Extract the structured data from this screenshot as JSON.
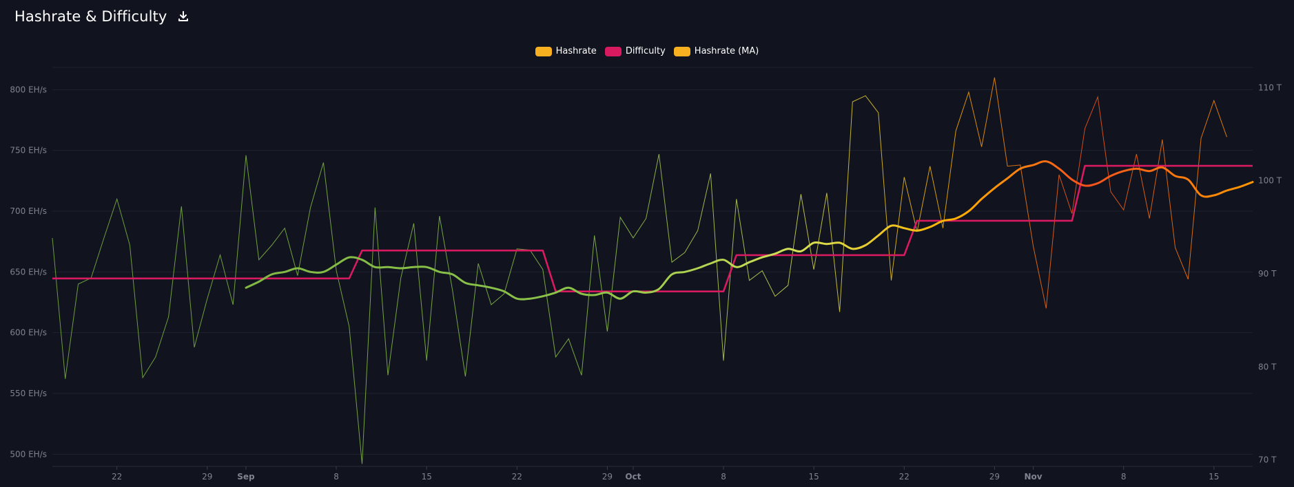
{
  "header": {
    "title": "Hashrate & Difficulty"
  },
  "icons": {
    "download": "download-icon"
  },
  "legend": [
    {
      "label": "Hashrate",
      "color": "#f7b120"
    },
    {
      "label": "Difficulty",
      "color": "#d81b60"
    },
    {
      "label": "Hashrate (MA)",
      "color": "#f7b120"
    }
  ],
  "chart_data": {
    "type": "line",
    "left_axis": {
      "unit": "EH/s",
      "range": [
        490,
        820
      ],
      "ticks": [
        {
          "value": 500,
          "label": "500 EH/s"
        },
        {
          "value": 550,
          "label": "550 EH/s"
        },
        {
          "value": 600,
          "label": "600 EH/s"
        },
        {
          "value": 650,
          "label": "650 EH/s"
        },
        {
          "value": 700,
          "label": "700 EH/s"
        },
        {
          "value": 750,
          "label": "750 EH/s"
        },
        {
          "value": 800,
          "label": "800 EH/s"
        }
      ]
    },
    "right_axis": {
      "unit": "T",
      "range": [
        69.3,
        112.4
      ],
      "ticks": [
        {
          "value": 70,
          "label": "70 T"
        },
        {
          "value": 80,
          "label": "80 T"
        },
        {
          "value": 90,
          "label": "90 T"
        },
        {
          "value": 100,
          "label": "100 T"
        },
        {
          "value": 110,
          "label": "110 T"
        }
      ]
    },
    "x_axis": {
      "start": "2024-08-17",
      "end": "2024-11-18",
      "ticks": [
        {
          "date": "2024-08-22",
          "label": "22",
          "bold": false
        },
        {
          "date": "2024-08-29",
          "label": "29",
          "bold": false
        },
        {
          "date": "2024-09-01",
          "label": "Sep",
          "bold": true
        },
        {
          "date": "2024-09-08",
          "label": "8",
          "bold": false
        },
        {
          "date": "2024-09-15",
          "label": "15",
          "bold": false
        },
        {
          "date": "2024-09-22",
          "label": "22",
          "bold": false
        },
        {
          "date": "2024-09-29",
          "label": "29",
          "bold": false
        },
        {
          "date": "2024-10-01",
          "label": "Oct",
          "bold": true
        },
        {
          "date": "2024-10-08",
          "label": "8",
          "bold": false
        },
        {
          "date": "2024-10-15",
          "label": "15",
          "bold": false
        },
        {
          "date": "2024-10-22",
          "label": "22",
          "bold": false
        },
        {
          "date": "2024-10-29",
          "label": "29",
          "bold": false
        },
        {
          "date": "2024-11-01",
          "label": "Nov",
          "bold": true
        },
        {
          "date": "2024-11-08",
          "label": "8",
          "bold": false
        },
        {
          "date": "2024-11-15",
          "label": "15",
          "bold": false
        }
      ]
    },
    "gradient_stops": [
      {
        "offset": 0,
        "color": "#7cb342"
      },
      {
        "offset": 0.45,
        "color": "#8bc34a"
      },
      {
        "offset": 0.62,
        "color": "#d4e157"
      },
      {
        "offset": 0.75,
        "color": "#ffb300"
      },
      {
        "offset": 0.86,
        "color": "#f4511e"
      },
      {
        "offset": 1.0,
        "color": "#ff9800"
      }
    ],
    "series": [
      {
        "name": "Hashrate",
        "axis": "left",
        "values": [
          [
            "2024-08-17",
            678
          ],
          [
            "2024-08-18",
            562
          ],
          [
            "2024-08-19",
            640
          ],
          [
            "2024-08-20",
            645
          ],
          [
            "2024-08-21",
            678
          ],
          [
            "2024-08-22",
            710
          ],
          [
            "2024-08-23",
            672
          ],
          [
            "2024-08-24",
            563
          ],
          [
            "2024-08-25",
            580
          ],
          [
            "2024-08-26",
            613
          ],
          [
            "2024-08-27",
            704
          ],
          [
            "2024-08-28",
            588
          ],
          [
            "2024-08-29",
            628
          ],
          [
            "2024-08-30",
            664
          ],
          [
            "2024-08-31",
            623
          ],
          [
            "2024-09-01",
            746
          ],
          [
            "2024-09-02",
            660
          ],
          [
            "2024-09-03",
            672
          ],
          [
            "2024-09-04",
            686
          ],
          [
            "2024-09-05",
            647
          ],
          [
            "2024-09-06",
            703
          ],
          [
            "2024-09-07",
            740
          ],
          [
            "2024-09-08",
            651
          ],
          [
            "2024-09-09",
            605
          ],
          [
            "2024-09-10",
            492
          ],
          [
            "2024-09-11",
            703
          ],
          [
            "2024-09-12",
            565
          ],
          [
            "2024-09-13",
            645
          ],
          [
            "2024-09-14",
            690
          ],
          [
            "2024-09-15",
            577
          ],
          [
            "2024-09-16",
            696
          ],
          [
            "2024-09-17",
            635
          ],
          [
            "2024-09-18",
            564
          ],
          [
            "2024-09-19",
            657
          ],
          [
            "2024-09-20",
            623
          ],
          [
            "2024-09-21",
            632
          ],
          [
            "2024-09-22",
            669
          ],
          [
            "2024-09-23",
            668
          ],
          [
            "2024-09-24",
            652
          ],
          [
            "2024-09-25",
            580
          ],
          [
            "2024-09-26",
            595
          ],
          [
            "2024-09-27",
            565
          ],
          [
            "2024-09-28",
            680
          ],
          [
            "2024-09-29",
            601
          ],
          [
            "2024-09-30",
            695
          ],
          [
            "2024-10-01",
            678
          ],
          [
            "2024-10-02",
            694
          ],
          [
            "2024-10-03",
            747
          ],
          [
            "2024-10-04",
            658
          ],
          [
            "2024-10-05",
            666
          ],
          [
            "2024-10-06",
            684
          ],
          [
            "2024-10-07",
            731
          ],
          [
            "2024-10-08",
            577
          ],
          [
            "2024-10-09",
            710
          ],
          [
            "2024-10-10",
            643
          ],
          [
            "2024-10-11",
            651
          ],
          [
            "2024-10-12",
            630
          ],
          [
            "2024-10-13",
            639
          ],
          [
            "2024-10-14",
            714
          ],
          [
            "2024-10-15",
            652
          ],
          [
            "2024-10-16",
            715
          ],
          [
            "2024-10-17",
            617
          ],
          [
            "2024-10-18",
            790
          ],
          [
            "2024-10-19",
            795
          ],
          [
            "2024-10-20",
            781
          ],
          [
            "2024-10-21",
            643
          ],
          [
            "2024-10-22",
            728
          ],
          [
            "2024-10-23",
            683
          ],
          [
            "2024-10-24",
            737
          ],
          [
            "2024-10-25",
            686
          ],
          [
            "2024-10-26",
            766
          ],
          [
            "2024-10-27",
            798
          ],
          [
            "2024-10-28",
            753
          ],
          [
            "2024-10-29",
            810
          ],
          [
            "2024-10-30",
            737
          ],
          [
            "2024-10-31",
            738
          ],
          [
            "2024-11-01",
            671
          ],
          [
            "2024-11-02",
            620
          ],
          [
            "2024-11-03",
            730
          ],
          [
            "2024-11-04",
            698
          ],
          [
            "2024-11-05",
            768
          ],
          [
            "2024-11-06",
            794
          ],
          [
            "2024-11-07",
            716
          ],
          [
            "2024-11-08",
            701
          ],
          [
            "2024-11-09",
            747
          ],
          [
            "2024-11-10",
            694
          ],
          [
            "2024-11-11",
            759
          ],
          [
            "2024-11-12",
            670
          ],
          [
            "2024-11-13",
            644
          ],
          [
            "2024-11-14",
            760
          ],
          [
            "2024-11-15",
            791
          ],
          [
            "2024-11-16",
            761
          ]
        ]
      },
      {
        "name": "Difficulty",
        "axis": "right",
        "values": [
          [
            "2024-08-17",
            89.5
          ],
          [
            "2024-09-09",
            89.5
          ],
          [
            "2024-09-10",
            92.5
          ],
          [
            "2024-09-24",
            92.5
          ],
          [
            "2024-09-25",
            88.1
          ],
          [
            "2024-10-08",
            88.1
          ],
          [
            "2024-10-09",
            92.0
          ],
          [
            "2024-10-22",
            92.0
          ],
          [
            "2024-10-23",
            95.7
          ],
          [
            "2024-11-04",
            95.7
          ],
          [
            "2024-11-05",
            101.6
          ],
          [
            "2024-11-18",
            101.6
          ]
        ]
      },
      {
        "name": "Hashrate (MA)",
        "axis": "left",
        "values": [
          [
            "2024-09-01",
            637
          ],
          [
            "2024-09-02",
            642
          ],
          [
            "2024-09-03",
            648
          ],
          [
            "2024-09-04",
            650
          ],
          [
            "2024-09-05",
            653
          ],
          [
            "2024-09-06",
            650
          ],
          [
            "2024-09-07",
            650
          ],
          [
            "2024-09-08",
            656
          ],
          [
            "2024-09-09",
            662
          ],
          [
            "2024-09-10",
            660
          ],
          [
            "2024-09-11",
            654
          ],
          [
            "2024-09-12",
            654
          ],
          [
            "2024-09-13",
            653
          ],
          [
            "2024-09-14",
            654
          ],
          [
            "2024-09-15",
            654
          ],
          [
            "2024-09-16",
            650
          ],
          [
            "2024-09-17",
            648
          ],
          [
            "2024-09-18",
            641
          ],
          [
            "2024-09-19",
            639
          ],
          [
            "2024-09-20",
            637
          ],
          [
            "2024-09-21",
            634
          ],
          [
            "2024-09-22",
            628
          ],
          [
            "2024-09-23",
            628
          ],
          [
            "2024-09-24",
            630
          ],
          [
            "2024-09-25",
            633
          ],
          [
            "2024-09-26",
            637
          ],
          [
            "2024-09-27",
            632
          ],
          [
            "2024-09-28",
            631
          ],
          [
            "2024-09-29",
            633
          ],
          [
            "2024-09-30",
            628
          ],
          [
            "2024-10-01",
            634
          ],
          [
            "2024-10-02",
            633
          ],
          [
            "2024-10-03",
            636
          ],
          [
            "2024-10-04",
            648
          ],
          [
            "2024-10-05",
            650
          ],
          [
            "2024-10-06",
            653
          ],
          [
            "2024-10-07",
            657
          ],
          [
            "2024-10-08",
            660
          ],
          [
            "2024-10-09",
            654
          ],
          [
            "2024-10-10",
            658
          ],
          [
            "2024-10-11",
            662
          ],
          [
            "2024-10-12",
            665
          ],
          [
            "2024-10-13",
            669
          ],
          [
            "2024-10-14",
            667
          ],
          [
            "2024-10-15",
            674
          ],
          [
            "2024-10-16",
            673
          ],
          [
            "2024-10-17",
            674
          ],
          [
            "2024-10-18",
            669
          ],
          [
            "2024-10-19",
            672
          ],
          [
            "2024-10-20",
            680
          ],
          [
            "2024-10-21",
            688
          ],
          [
            "2024-10-22",
            686
          ],
          [
            "2024-10-23",
            684
          ],
          [
            "2024-10-24",
            687
          ],
          [
            "2024-10-25",
            692
          ],
          [
            "2024-10-26",
            694
          ],
          [
            "2024-10-27",
            700
          ],
          [
            "2024-10-28",
            710
          ],
          [
            "2024-10-29",
            719
          ],
          [
            "2024-10-30",
            727
          ],
          [
            "2024-10-31",
            735
          ],
          [
            "2024-11-01",
            738
          ],
          [
            "2024-11-02",
            741
          ],
          [
            "2024-11-03",
            735
          ],
          [
            "2024-11-04",
            726
          ],
          [
            "2024-11-05",
            721
          ],
          [
            "2024-11-06",
            723
          ],
          [
            "2024-11-07",
            729
          ],
          [
            "2024-11-08",
            733
          ],
          [
            "2024-11-09",
            735
          ],
          [
            "2024-11-10",
            733
          ],
          [
            "2024-11-11",
            736
          ],
          [
            "2024-11-12",
            729
          ],
          [
            "2024-11-13",
            726
          ],
          [
            "2024-11-14",
            713
          ],
          [
            "2024-11-15",
            713
          ],
          [
            "2024-11-16",
            717
          ],
          [
            "2024-11-17",
            720
          ],
          [
            "2024-11-18",
            724
          ]
        ]
      }
    ]
  }
}
